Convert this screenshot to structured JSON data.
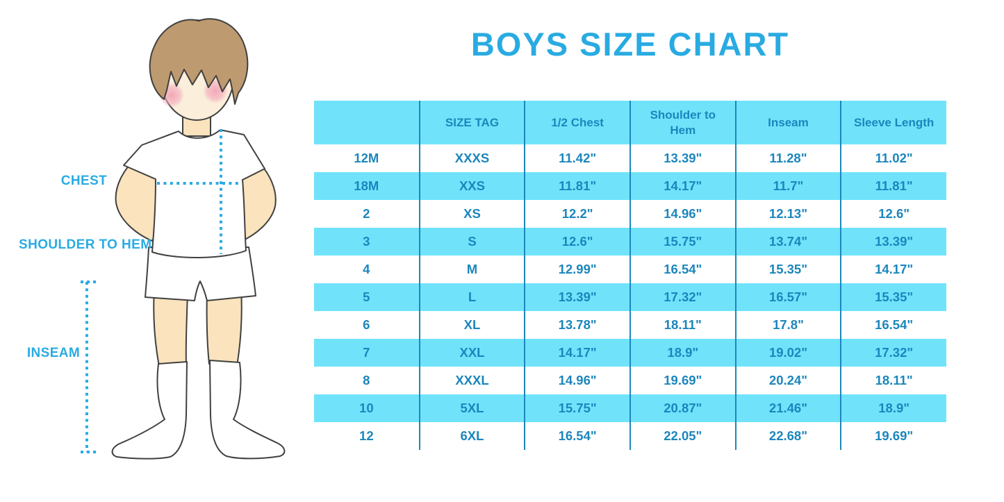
{
  "title": "BOYS SIZE CHART",
  "colors": {
    "accent": "#29abe2",
    "table_fill": "#70e3fb",
    "table_text": "#1c86bc",
    "table_line": "#1c86bc",
    "skin": "#fae3bd",
    "face": "#fbeedb",
    "hair": "#bd9a6f",
    "blush": "#f29fb4",
    "outline": "#404040"
  },
  "figure": {
    "labels": {
      "chest": "CHEST",
      "shoulder_to_hem": "SHOULDER TO HEM",
      "inseam": "INSEAM"
    }
  },
  "chart_data": {
    "type": "table",
    "title": "BOYS SIZE CHART",
    "headers": [
      "",
      "SIZE TAG",
      "1/2 Chest",
      "Shoulder to Hem",
      "Inseam",
      "Sleeve Length"
    ],
    "rows": [
      [
        "12M",
        "XXXS",
        "11.42\"",
        "13.39\"",
        "11.28\"",
        "11.02\""
      ],
      [
        "18M",
        "XXS",
        "11.81\"",
        "14.17\"",
        "11.7\"",
        "11.81\""
      ],
      [
        "2",
        "XS",
        "12.2\"",
        "14.96\"",
        "12.13\"",
        "12.6\""
      ],
      [
        "3",
        "S",
        "12.6\"",
        "15.75\"",
        "13.74\"",
        "13.39\""
      ],
      [
        "4",
        "M",
        "12.99\"",
        "16.54\"",
        "15.35\"",
        "14.17\""
      ],
      [
        "5",
        "L",
        "13.39\"",
        "17.32\"",
        "16.57\"",
        "15.35\""
      ],
      [
        "6",
        "XL",
        "13.78\"",
        "18.11\"",
        "17.8\"",
        "16.54\""
      ],
      [
        "7",
        "XXL",
        "14.17\"",
        "18.9\"",
        "19.02\"",
        "17.32\""
      ],
      [
        "8",
        "XXXL",
        "14.96\"",
        "19.69\"",
        "20.24\"",
        "18.11\""
      ],
      [
        "10",
        "5XL",
        "15.75\"",
        "20.87\"",
        "21.46\"",
        "18.9\""
      ],
      [
        "12",
        "6XL",
        "16.54\"",
        "22.05\"",
        "22.68\"",
        "19.69\""
      ]
    ]
  }
}
